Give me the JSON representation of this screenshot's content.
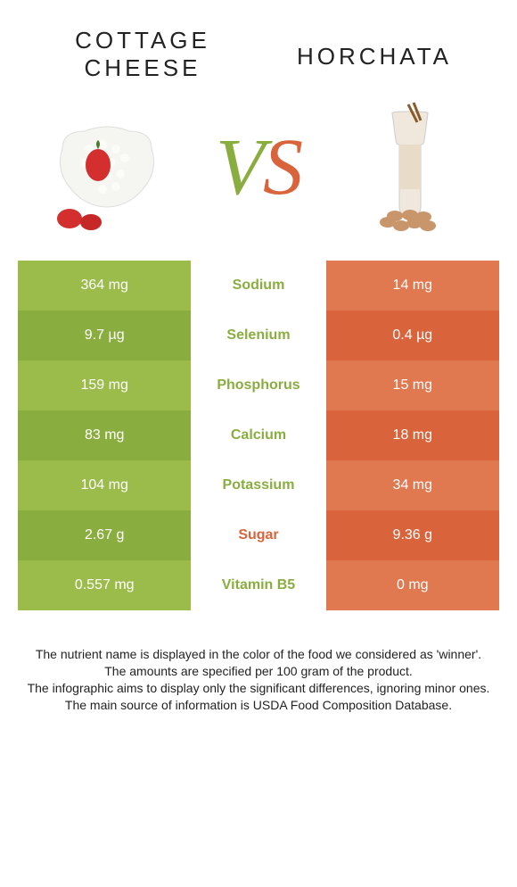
{
  "colors": {
    "left_base": "#9bbb4a",
    "left_alt": "#8aad3f",
    "right_base": "#e07850",
    "right_alt": "#d9633b",
    "mid_left": "#8aad3f",
    "mid_right": "#d9633b",
    "text_white": "#ffffff"
  },
  "header": {
    "left_title_line1": "COTTAGE",
    "left_title_line2": "CHEESE",
    "right_title": "HORCHATA",
    "vs_v": "V",
    "vs_s": "S"
  },
  "rows": [
    {
      "left": "364 mg",
      "label": "Sodium",
      "right": "14 mg",
      "winner": "left"
    },
    {
      "left": "9.7 µg",
      "label": "Selenium",
      "right": "0.4 µg",
      "winner": "left"
    },
    {
      "left": "159 mg",
      "label": "Phosphorus",
      "right": "15 mg",
      "winner": "left"
    },
    {
      "left": "83 mg",
      "label": "Calcium",
      "right": "18 mg",
      "winner": "left"
    },
    {
      "left": "104 mg",
      "label": "Potassium",
      "right": "34 mg",
      "winner": "left"
    },
    {
      "left": "2.67 g",
      "label": "Sugar",
      "right": "9.36 g",
      "winner": "right"
    },
    {
      "left": "0.557 mg",
      "label": "Vitamin B5",
      "right": "0 mg",
      "winner": "left"
    }
  ],
  "footer": {
    "line1": "The nutrient name is displayed in the color of the food we considered as 'winner'.",
    "line2": "The amounts are specified per 100 gram of the product.",
    "line3": "The infographic aims to display only the significant differences, ignoring minor ones.",
    "line4": "The main source of information is USDA Food Composition Database."
  }
}
